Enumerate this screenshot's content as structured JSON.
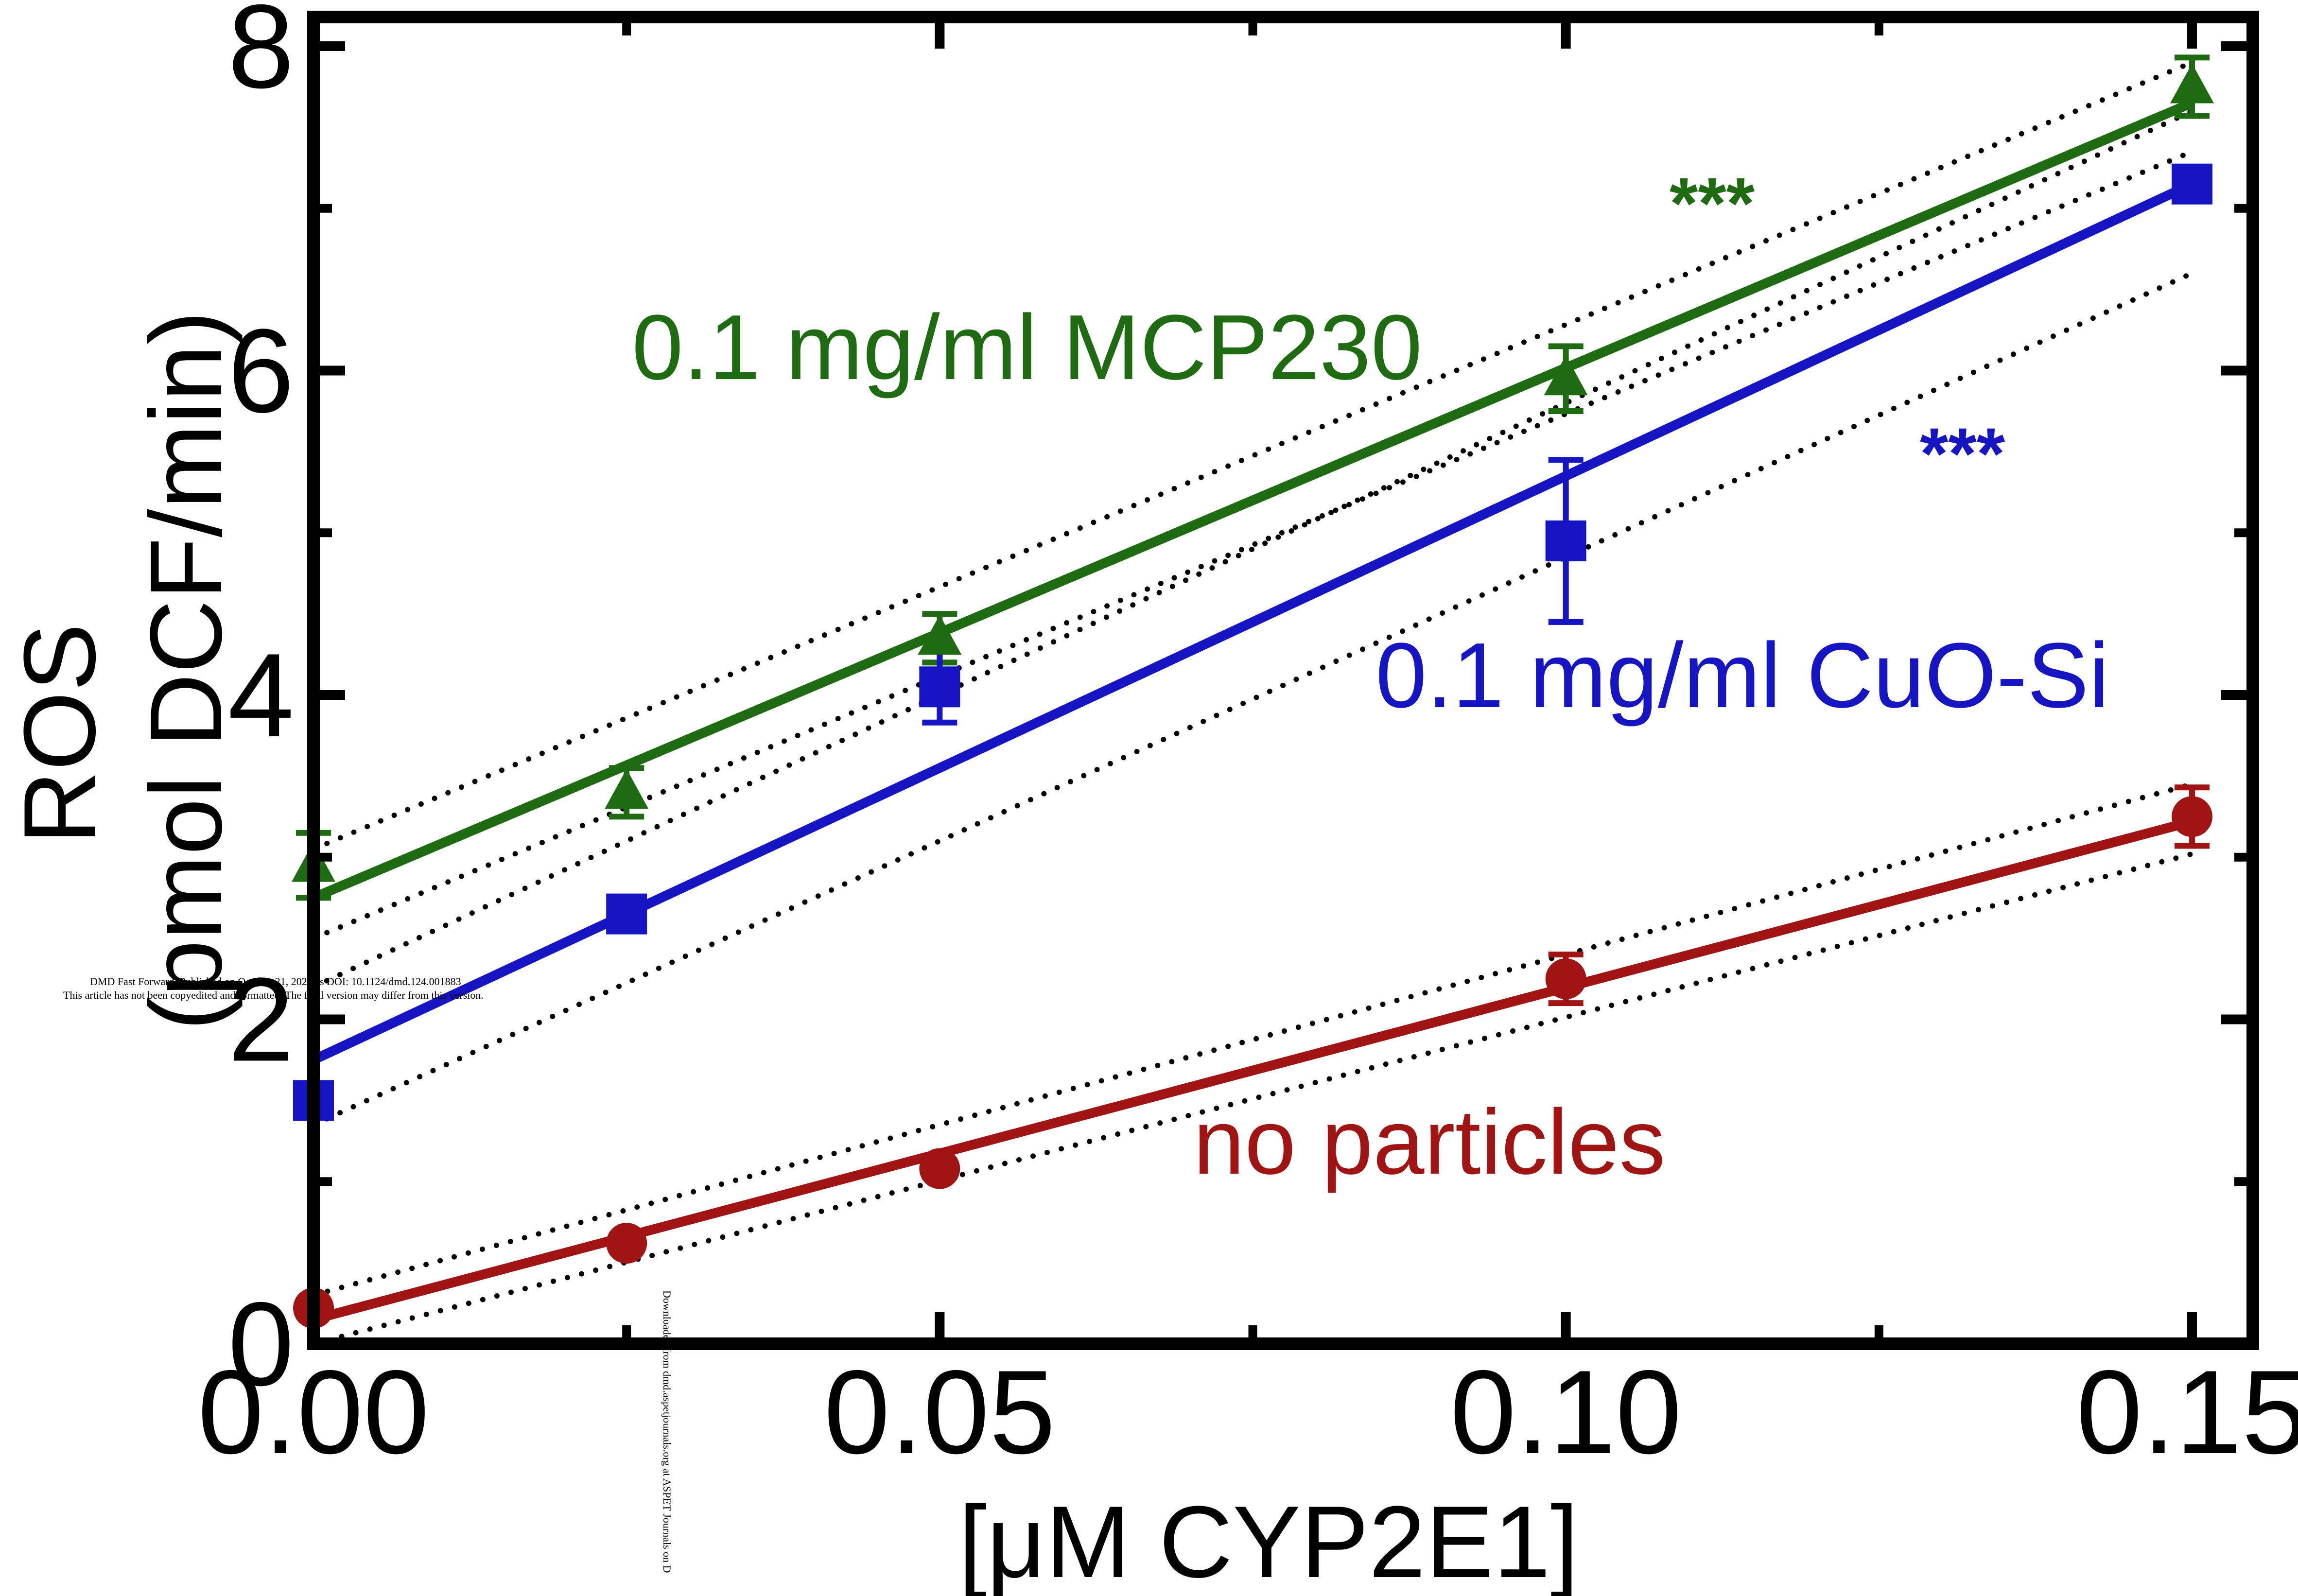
{
  "chart_data": {
    "type": "line",
    "xlabel": "[μM CYP2E1]",
    "ylabel_line1": "ROS",
    "ylabel_line2": "(pmol DCF/min)",
    "xlim": [
      0.0,
      0.15
    ],
    "ylim": [
      0,
      8
    ],
    "x_ticks": [
      "0.00",
      "0.05",
      "0.10",
      "0.15"
    ],
    "x_tick_values": [
      0.0,
      0.05,
      0.1,
      0.15
    ],
    "y_ticks": [
      "0",
      "2",
      "4",
      "6",
      "8"
    ],
    "y_tick_values": [
      0,
      2,
      4,
      6,
      8
    ],
    "y_minor_ticks": [
      1,
      3,
      5,
      7
    ],
    "x_minor_ticks": [
      0.025,
      0.075,
      0.125
    ],
    "grid": false,
    "legend": "none (labels placed on plot)",
    "series": [
      {
        "name": "0.1 mg/ml MCP230",
        "color": "#1e6b12",
        "marker": "triangle",
        "x": [
          0.0,
          0.025,
          0.05,
          0.1,
          0.15
        ],
        "y": [
          2.95,
          3.4,
          4.35,
          5.95,
          7.75
        ],
        "err": [
          0.2,
          0.15,
          0.15,
          0.2,
          0.18
        ],
        "fit": {
          "y0": 2.75,
          "y1": 7.65
        },
        "ci_upper": {
          "y0": 3.05,
          "y1": 7.9
        },
        "ci_lower": {
          "y0": 2.5,
          "y1": 7.35
        },
        "significance": "***"
      },
      {
        "name": "0.1 mg/ml CuO-Si",
        "color": "#1515c4",
        "marker": "square",
        "x": [
          0.0,
          0.025,
          0.05,
          0.1,
          0.15
        ],
        "y": [
          1.5,
          2.65,
          4.05,
          4.95,
          7.15
        ],
        "err": [
          0.05,
          0.05,
          0.22,
          0.5,
          0.05
        ],
        "fit": {
          "y0": 1.75,
          "y1": 7.15
        },
        "ci_upper": {
          "y0": 2.2,
          "y1": 7.6
        },
        "ci_lower": {
          "y0": 1.35,
          "y1": 6.6
        },
        "significance": "***"
      },
      {
        "name": "no particles",
        "color": "#a01414",
        "marker": "circle",
        "x": [
          0.0,
          0.025,
          0.05,
          0.1,
          0.15
        ],
        "y": [
          0.22,
          0.62,
          1.08,
          2.25,
          3.25
        ],
        "err": [
          0.05,
          0.05,
          0.05,
          0.15,
          0.18
        ],
        "fit": {
          "y0": 0.15,
          "y1": 3.22
        },
        "ci_upper": {
          "y0": 0.3,
          "y1": 3.45
        },
        "ci_lower": {
          "y0": 0.0,
          "y1": 3.02
        }
      }
    ]
  },
  "watermark": {
    "line1": "DMD Fast Forward. Published on October 21, 2024 as DOI: 10.1124/dmd.124.001883",
    "line2": "This article has not been copyedited and formatted. The final version may differ from this version.",
    "vertical": "Downloaded from dmd.aspetjournals.org at ASPET Journals on D"
  }
}
